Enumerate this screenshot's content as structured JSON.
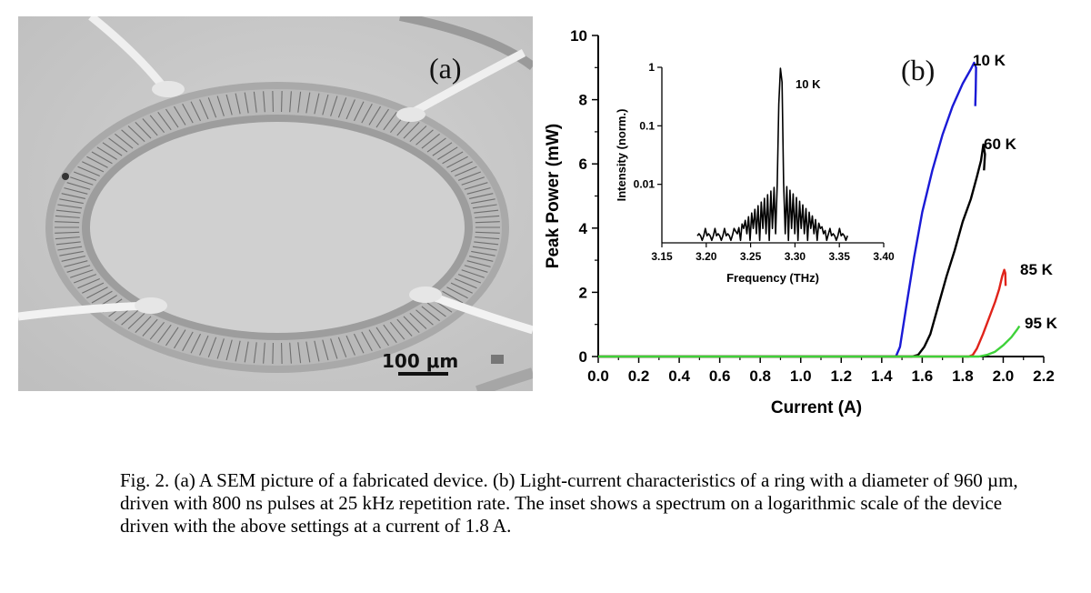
{
  "panel_a": {
    "label": "(a)",
    "scale_bar": "100 μm"
  },
  "panel_b": {
    "label": "(b)"
  },
  "chart_data": [
    {
      "id": "main",
      "type": "line",
      "xlabel": "Current (A)",
      "ylabel": "Peak Power (mW)",
      "xlim": [
        0.0,
        2.2
      ],
      "ylim": [
        0,
        10
      ],
      "xticks": [
        0.0,
        0.2,
        0.4,
        0.6,
        0.8,
        1.0,
        1.2,
        1.4,
        1.6,
        1.8,
        2.0,
        2.2
      ],
      "xtick_labels": [
        "0.0",
        "0.2",
        "0.4",
        "0.6",
        "0.8",
        "1.0",
        "1.2",
        "1.4",
        "1.6",
        "1.8",
        "2.0",
        "2.2"
      ],
      "yticks": [
        0,
        2,
        4,
        6,
        8,
        10
      ],
      "ytick_labels": [
        "0",
        "2",
        "4",
        "6",
        "8",
        "10"
      ],
      "grid": false,
      "series": [
        {
          "name": "10 K",
          "color": "#1a1ad6",
          "x": [
            0.0,
            1.47,
            1.49,
            1.52,
            1.56,
            1.6,
            1.65,
            1.7,
            1.75,
            1.8,
            1.84,
            1.856,
            1.866,
            1.864,
            1.862
          ],
          "y": [
            0,
            0,
            0.3,
            1.5,
            3.1,
            4.5,
            5.8,
            6.9,
            7.8,
            8.5,
            8.95,
            9.15,
            9.0,
            8.3,
            7.8
          ]
        },
        {
          "name": "60 K",
          "color": "#000000",
          "x": [
            0.0,
            1.55,
            1.58,
            1.61,
            1.64,
            1.68,
            1.72,
            1.76,
            1.8,
            1.84,
            1.87,
            1.89,
            1.902,
            1.91,
            1.905
          ],
          "y": [
            0,
            0,
            0.05,
            0.3,
            0.7,
            1.6,
            2.5,
            3.3,
            4.2,
            4.9,
            5.6,
            6.1,
            6.6,
            6.3,
            5.8
          ]
        },
        {
          "name": "85 K",
          "color": "#e0231a",
          "x": [
            0.0,
            1.83,
            1.85,
            1.87,
            1.9,
            1.93,
            1.96,
            1.98,
            1.995,
            2.005,
            2.01,
            2.012
          ],
          "y": [
            0,
            0,
            0.05,
            0.25,
            0.7,
            1.2,
            1.7,
            2.1,
            2.5,
            2.7,
            2.6,
            2.2
          ]
        },
        {
          "name": "95 K",
          "color": "#3fd23a",
          "x": [
            0.0,
            1.88,
            1.92,
            1.96,
            2.0,
            2.04,
            2.07,
            2.08
          ],
          "y": [
            0,
            0,
            0.05,
            0.15,
            0.35,
            0.6,
            0.85,
            0.95
          ]
        }
      ]
    },
    {
      "id": "inset",
      "type": "line",
      "xlabel": "Frequency (THz)",
      "ylabel": "Intensity (norm.)",
      "yscale": "log",
      "xlim": [
        3.15,
        3.4
      ],
      "ylim": [
        0.001,
        1
      ],
      "xticks": [
        3.15,
        3.2,
        3.25,
        3.3,
        3.35,
        3.4
      ],
      "xtick_labels": [
        "3.15",
        "3.20",
        "3.25",
        "3.30",
        "3.35",
        "3.40"
      ],
      "yticks": [
        0.01,
        0.1,
        1
      ],
      "ytick_labels": [
        "0.01",
        "0.1",
        "1"
      ],
      "annotation": "10 K",
      "series": [
        {
          "color": "#000000",
          "peak_x": 3.284,
          "peak_y": 1.0,
          "floor_y": 0.0011,
          "sidelobe_max": 0.012,
          "span": [
            3.19,
            3.36
          ]
        }
      ]
    }
  ],
  "caption": "Fig. 2. (a) A SEM picture of a fabricated device. (b) Light-current characteristics of a ring with a diameter of 960 µm, driven with 800 ns pulses at 25 kHz repetition rate. The inset shows a spectrum on a logarithmic scale of the device driven with the above settings at a current of 1.8 A."
}
